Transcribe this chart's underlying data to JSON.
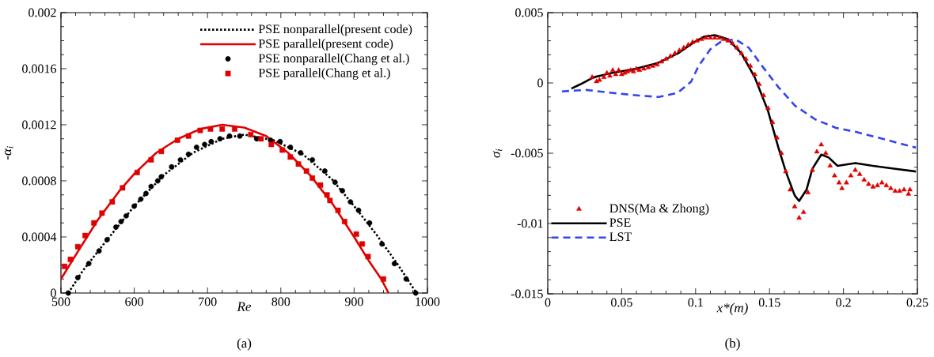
{
  "chart_data": [
    {
      "type": "line",
      "xlabel": "Re",
      "ylabel": "-α$_{i}$",
      "annotations": [
        "(a)"
      ],
      "xlim": [
        500,
        1000
      ],
      "ylim": [
        0,
        0.002
      ],
      "xticks": [
        500,
        600,
        700,
        800,
        900,
        1000
      ],
      "yticks": [
        0,
        0.0004,
        0.0008,
        0.0012,
        0.0016,
        0.002
      ],
      "legend": "top right",
      "series": [
        {
          "name": "PSE nonparallel(present code)",
          "color": "#000000",
          "line_style": "dotted",
          "x": [
            510,
            530,
            560,
            600,
            640,
            680,
            720,
            750,
            790,
            830,
            870,
            900,
            930,
            960,
            985
          ],
          "values": [
            0,
            0.00016,
            0.00036,
            0.00062,
            0.00084,
            0.001,
            0.0011,
            0.00113,
            0.00109,
            0.00099,
            0.00081,
            0.00062,
            0.00042,
            0.0002,
            0
          ]
        },
        {
          "name": "PSE parallel(present code)",
          "color": "#e00000",
          "line_style": "solid",
          "x": [
            500,
            520,
            550,
            580,
            600,
            630,
            660,
            690,
            720,
            750,
            780,
            810,
            840,
            870,
            900,
            920,
            937,
            947
          ],
          "values": [
            0.0001,
            0.00027,
            0.00052,
            0.00073,
            0.00085,
            0.001,
            0.0011,
            0.00117,
            0.0012,
            0.00118,
            0.00112,
            0.001,
            0.00084,
            0.00064,
            0.0004,
            0.00023,
            0.0001,
            0
          ]
        },
        {
          "name": "PSE nonparallel(Chang et al.)",
          "type": "scatter",
          "color": "#000000",
          "marker": "circle",
          "x": [
            510,
            523,
            538,
            552,
            563,
            575,
            582,
            589,
            600,
            609,
            616,
            623,
            632,
            637,
            651,
            663,
            674,
            685,
            696,
            705,
            717,
            730,
            744,
            767,
            786,
            799,
            813,
            827,
            843,
            860,
            874,
            884,
            895,
            906,
            921,
            938,
            955,
            971,
            984
          ],
          "values": [
            0,
            0.00011,
            0.00021,
            0.0003,
            0.00038,
            0.00047,
            0.00051,
            0.00055,
            0.00062,
            0.00067,
            0.00071,
            0.00076,
            0.0008,
            0.00083,
            0.0009,
            0.00095,
            0.00099,
            0.00104,
            0.00106,
            0.00108,
            0.0011,
            0.00112,
            0.00112,
            0.0011,
            0.00109,
            0.00108,
            0.00104,
            0.001,
            0.00095,
            0.00087,
            0.00079,
            0.00073,
            0.00065,
            0.00059,
            0.0005,
            0.00035,
            0.00021,
            0.0001,
            0
          ]
        },
        {
          "name": "PSE parallel(Chang et al.)",
          "type": "scatter",
          "color": "#e00000",
          "marker": "square",
          "x": [
            505,
            513,
            523,
            533,
            545,
            556,
            570,
            584,
            604,
            623,
            637,
            659,
            674,
            690,
            704,
            720,
            737,
            759,
            773,
            787,
            802,
            813,
            824,
            835,
            843,
            854,
            863,
            867,
            878,
            887,
            903,
            911,
            919,
            940
          ],
          "values": [
            0.00019,
            0.00024,
            0.00033,
            0.00041,
            0.0005,
            0.00057,
            0.00065,
            0.00075,
            0.00086,
            0.00095,
            0.00101,
            0.00109,
            0.00112,
            0.00116,
            0.00117,
            0.00117,
            0.00117,
            0.00113,
            0.0011,
            0.00106,
            0.00102,
            0.00097,
            0.00092,
            0.00087,
            0.00082,
            0.00077,
            0.0007,
            0.00066,
            0.00059,
            0.00051,
            0.00042,
            0.00035,
            0.00026,
            0.0001
          ]
        }
      ]
    },
    {
      "type": "line",
      "xlabel": "x*(m)",
      "ylabel": "σ$_{i}$",
      "annotations": [
        "(b)"
      ],
      "xlim": [
        0,
        0.25
      ],
      "ylim": [
        -0.015,
        0.005
      ],
      "xticks": [
        0,
        0.05,
        0.1,
        0.15,
        0.2,
        0.25
      ],
      "yticks": [
        -0.015,
        -0.01,
        -0.005,
        0,
        0.005
      ],
      "legend": "bottom left",
      "series": [
        {
          "name": "DNS(Ma & Zhong)",
          "type": "scatter",
          "color": "#e00000",
          "marker": "triangle",
          "x": [
            0.03,
            0.033,
            0.035,
            0.038,
            0.04,
            0.042,
            0.044,
            0.046,
            0.048,
            0.05,
            0.052,
            0.054,
            0.056,
            0.058,
            0.06,
            0.062,
            0.065,
            0.068,
            0.071,
            0.074,
            0.077,
            0.08,
            0.083,
            0.086,
            0.089,
            0.092,
            0.095,
            0.098,
            0.101,
            0.104,
            0.107,
            0.11,
            0.113,
            0.116,
            0.119,
            0.122,
            0.125,
            0.128,
            0.131,
            0.134,
            0.137,
            0.14,
            0.143,
            0.146,
            0.149,
            0.152,
            0.155,
            0.158,
            0.161,
            0.164,
            0.167,
            0.17,
            0.173,
            0.176,
            0.179,
            0.182,
            0.185,
            0.188,
            0.191,
            0.194,
            0.197,
            0.199,
            0.202,
            0.205,
            0.208,
            0.211,
            0.214,
            0.217,
            0.22,
            0.223,
            0.226,
            0.229,
            0.232,
            0.235,
            0.238,
            0.241,
            0.244,
            0.245
          ],
          "values": [
            0.0004,
            0.0001,
            0.0002,
            0.0004,
            0.0007,
            0.0005,
            0.0009,
            0.0006,
            0.0009,
            0.0006,
            0.0007,
            0.0008,
            0.0009,
            0.0008,
            0.001,
            0.0009,
            0.001,
            0.0011,
            0.0012,
            0.0013,
            0.0015,
            0.0017,
            0.0019,
            0.0021,
            0.0023,
            0.0025,
            0.0027,
            0.0029,
            0.003,
            0.0031,
            0.0032,
            0.0032,
            0.0032,
            0.0032,
            0.0031,
            0.003,
            0.0028,
            0.0025,
            0.0021,
            0.0017,
            0.0012,
            0.0006,
            -0.0001,
            -0.0009,
            -0.0018,
            -0.0028,
            -0.0039,
            -0.005,
            -0.0063,
            -0.0076,
            -0.0088,
            -0.0096,
            -0.0092,
            -0.0078,
            -0.0062,
            -0.0049,
            -0.0044,
            -0.005,
            -0.0059,
            -0.0066,
            -0.0071,
            -0.0075,
            -0.0071,
            -0.0066,
            -0.0062,
            -0.0065,
            -0.0069,
            -0.0072,
            -0.0074,
            -0.0073,
            -0.0071,
            -0.0073,
            -0.0075,
            -0.0077,
            -0.0077,
            -0.0076,
            -0.0079,
            -0.0076
          ]
        },
        {
          "name": "PSE",
          "color": "#000000",
          "line_style": "solid",
          "x": [
            0.016,
            0.022,
            0.031,
            0.043,
            0.059,
            0.074,
            0.088,
            0.099,
            0.106,
            0.113,
            0.122,
            0.131,
            0.14,
            0.149,
            0.156,
            0.161,
            0.167,
            0.17,
            0.175,
            0.179,
            0.185,
            0.19,
            0.196,
            0.202,
            0.208,
            0.22,
            0.234,
            0.249
          ],
          "values": [
            -0.0004,
            -0.0001,
            0.0004,
            0.0007,
            0.001,
            0.0014,
            0.0021,
            0.0029,
            0.0033,
            0.0034,
            0.0031,
            0.0021,
            0.0004,
            -0.002,
            -0.0046,
            -0.0063,
            -0.008,
            -0.0084,
            -0.0076,
            -0.0061,
            -0.0051,
            -0.0053,
            -0.0059,
            -0.0058,
            -0.0057,
            -0.0059,
            -0.0061,
            -0.0063
          ]
        },
        {
          "name": "LST",
          "color": "#3344ee",
          "line_style": "dashed",
          "x": [
            0.0096,
            0.026,
            0.043,
            0.062,
            0.075,
            0.088,
            0.097,
            0.102,
            0.11,
            0.118,
            0.127,
            0.136,
            0.145,
            0.156,
            0.167,
            0.181,
            0.195,
            0.209,
            0.224,
            0.238,
            0.249
          ],
          "values": [
            -0.0006,
            -0.0005,
            -0.0007,
            -0.0009,
            -0.001,
            -0.0007,
            0.0001,
            0.0012,
            0.0024,
            0.003,
            0.0031,
            0.0025,
            0.0012,
            -0.0003,
            -0.0016,
            -0.0026,
            -0.0032,
            -0.0035,
            -0.0039,
            -0.0043,
            -0.0046
          ]
        }
      ]
    }
  ]
}
